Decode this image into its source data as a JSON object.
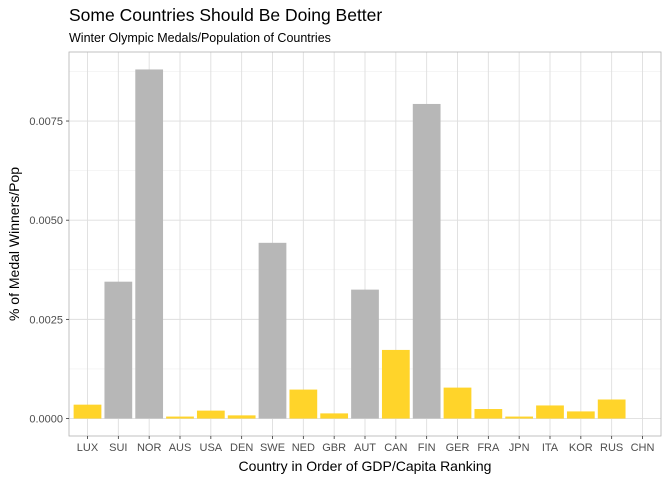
{
  "chart_data": {
    "type": "bar",
    "title": "Some Countries Should Be Doing Better",
    "subtitle": "Winter Olympic Medals/Population of Countries",
    "xlabel": "Country in Order of GDP/Capita Ranking",
    "ylabel": "% of Medal Winners/Pop",
    "categories": [
      "LUX",
      "SUI",
      "NOR",
      "AUS",
      "USA",
      "DEN",
      "SWE",
      "NED",
      "GBR",
      "AUT",
      "CAN",
      "FIN",
      "GER",
      "FRA",
      "JPN",
      "ITA",
      "KOR",
      "RUS",
      "CHN"
    ],
    "values": [
      0.00035,
      0.00345,
      0.0088,
      5e-05,
      0.0002,
      8e-05,
      0.00443,
      0.00073,
      0.00013,
      0.00325,
      0.00173,
      0.00793,
      0.00078,
      0.00024,
      5e-05,
      0.00033,
      0.00018,
      0.00048,
      0.0
    ],
    "highlight": [
      true,
      false,
      false,
      true,
      true,
      true,
      false,
      true,
      true,
      false,
      true,
      false,
      true,
      true,
      true,
      true,
      true,
      true,
      true
    ],
    "ylim": [
      -0.00044,
      0.00924
    ],
    "yticks": [
      0.0,
      0.0025,
      0.005,
      0.0075
    ],
    "ytick_labels": [
      "0.0000",
      "0.0025",
      "0.0050",
      "0.0075"
    ],
    "grid": true,
    "colors": {
      "highlight": "#FFD42A",
      "other": "#B7B7B7"
    }
  }
}
